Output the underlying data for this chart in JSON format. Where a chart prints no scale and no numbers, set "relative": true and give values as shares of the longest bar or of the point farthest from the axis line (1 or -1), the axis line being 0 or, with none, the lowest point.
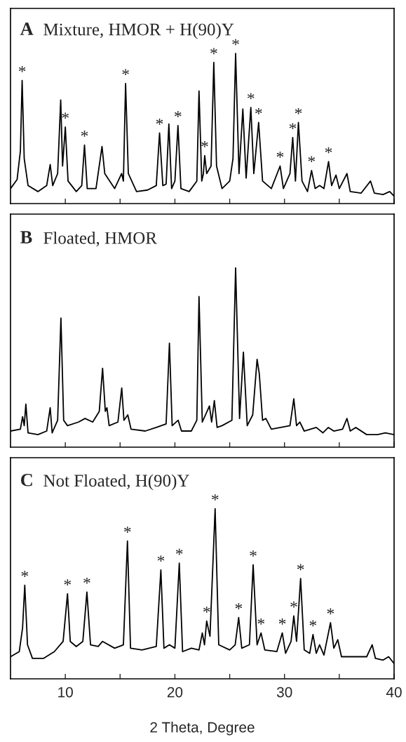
{
  "chart_data": [
    {
      "type": "line",
      "title": "A",
      "subtitle": "Mixture, HMOR + H(90)Y",
      "relative": true,
      "xlim": [
        5,
        40
      ],
      "xticks": [
        {
          "value": 10,
          "label": null
        },
        {
          "value": 15,
          "label": null
        },
        {
          "value": 20,
          "label": null
        },
        {
          "value": 25,
          "label": null
        },
        {
          "value": 30,
          "label": null
        },
        {
          "value": 35,
          "label": null
        },
        {
          "value": 40,
          "label": null
        }
      ],
      "tick_labels": false,
      "legend": false,
      "grid": false,
      "marker": "none",
      "line_style": "solid",
      "series": [
        {
          "color": "#000000",
          "x": [
            5.0,
            5.6,
            5.9,
            6.06,
            6.25,
            6.6,
            7.5,
            8.3,
            8.62,
            8.85,
            9.3,
            9.58,
            9.75,
            10.0,
            10.25,
            11.0,
            11.5,
            11.75,
            12.0,
            12.8,
            13.35,
            13.6,
            14.5,
            15.14,
            15.3,
            15.5,
            15.75,
            16.5,
            17.5,
            18.3,
            18.6,
            18.9,
            19.2,
            19.45,
            19.7,
            20.0,
            20.28,
            20.55,
            21.3,
            22.0,
            22.2,
            22.45,
            22.6,
            22.72,
            22.9,
            23.3,
            23.55,
            23.8,
            24.3,
            25.0,
            25.3,
            25.54,
            25.85,
            26.2,
            26.5,
            26.93,
            27.2,
            27.64,
            28.0,
            28.8,
            29.6,
            29.9,
            30.5,
            30.75,
            31.0,
            31.27,
            31.6,
            32.1,
            32.47,
            32.8,
            33.2,
            33.6,
            34.02,
            34.3,
            34.7,
            35.0,
            35.7,
            36.0,
            37.0,
            37.85,
            38.2,
            39.0,
            39.6,
            40.0
          ],
          "values": [
            0.1,
            0.16,
            0.35,
            0.82,
            0.3,
            0.12,
            0.08,
            0.12,
            0.26,
            0.12,
            0.2,
            0.69,
            0.25,
            0.51,
            0.15,
            0.08,
            0.12,
            0.39,
            0.1,
            0.1,
            0.38,
            0.2,
            0.1,
            0.2,
            0.15,
            0.8,
            0.2,
            0.08,
            0.09,
            0.12,
            0.47,
            0.12,
            0.13,
            0.53,
            0.1,
            0.15,
            0.52,
            0.1,
            0.08,
            0.15,
            0.75,
            0.15,
            0.2,
            0.32,
            0.2,
            0.25,
            0.94,
            0.25,
            0.1,
            0.15,
            0.3,
            1.0,
            0.2,
            0.63,
            0.17,
            0.64,
            0.2,
            0.54,
            0.15,
            0.1,
            0.25,
            0.1,
            0.2,
            0.44,
            0.15,
            0.54,
            0.15,
            0.08,
            0.22,
            0.1,
            0.12,
            0.1,
            0.28,
            0.12,
            0.19,
            0.1,
            0.2,
            0.08,
            0.07,
            0.15,
            0.07,
            0.06,
            0.08,
            0.05
          ]
        }
      ],
      "annotations": [
        {
          "text": "*",
          "x": 6.06,
          "y": 0.82
        },
        {
          "text": "*",
          "x": 10.0,
          "y": 0.51
        },
        {
          "text": "*",
          "x": 11.75,
          "y": 0.39
        },
        {
          "text": "*",
          "x": 15.5,
          "y": 0.8
        },
        {
          "text": "*",
          "x": 18.6,
          "y": 0.47
        },
        {
          "text": "*",
          "x": 20.28,
          "y": 0.52
        },
        {
          "text": "*",
          "x": 22.72,
          "y": 0.32
        },
        {
          "text": "*",
          "x": 23.55,
          "y": 0.94
        },
        {
          "text": "*",
          "x": 25.54,
          "y": 1.0
        },
        {
          "text": "*",
          "x": 26.93,
          "y": 0.64
        },
        {
          "text": "*",
          "x": 27.64,
          "y": 0.54
        },
        {
          "text": "*",
          "x": 29.6,
          "y": 0.25
        },
        {
          "text": "*",
          "x": 30.75,
          "y": 0.44
        },
        {
          "text": "*",
          "x": 31.27,
          "y": 0.54
        },
        {
          "text": "*",
          "x": 32.47,
          "y": 0.22
        },
        {
          "text": "*",
          "x": 34.02,
          "y": 0.28
        }
      ]
    },
    {
      "type": "line",
      "title": "B",
      "subtitle": "Floated, HMOR",
      "relative": true,
      "xlim": [
        5,
        40
      ],
      "xticks": [
        {
          "value": 10,
          "label": null
        },
        {
          "value": 15,
          "label": null
        },
        {
          "value": 20,
          "label": null
        },
        {
          "value": 25,
          "label": null
        },
        {
          "value": 30,
          "label": null
        },
        {
          "value": 35,
          "label": null
        },
        {
          "value": 40,
          "label": null
        }
      ],
      "tick_labels": false,
      "legend": false,
      "grid": false,
      "marker": "none",
      "line_style": "solid",
      "series": [
        {
          "color": "#000000",
          "x": [
            5.0,
            5.9,
            6.1,
            6.25,
            6.4,
            6.6,
            7.5,
            8.3,
            8.62,
            8.8,
            9.3,
            9.6,
            9.85,
            10.2,
            11.2,
            11.8,
            12.5,
            13.1,
            13.4,
            13.65,
            13.8,
            14.0,
            14.8,
            15.15,
            15.35,
            15.7,
            16.0,
            17.3,
            18.3,
            19.2,
            19.5,
            19.75,
            20.3,
            20.6,
            21.5,
            22.0,
            22.2,
            22.5,
            23.15,
            23.35,
            23.6,
            23.85,
            24.3,
            25.2,
            25.54,
            25.9,
            26.25,
            26.6,
            27.1,
            27.5,
            27.7,
            28.0,
            28.3,
            28.8,
            30.5,
            30.85,
            31.1,
            31.4,
            31.8,
            32.9,
            33.5,
            34.0,
            34.5,
            35.3,
            35.7,
            36.0,
            36.5,
            37.5,
            38.5,
            39.2,
            40.0
          ],
          "values": [
            0.09,
            0.1,
            0.17,
            0.12,
            0.24,
            0.08,
            0.07,
            0.09,
            0.22,
            0.08,
            0.15,
            0.72,
            0.15,
            0.12,
            0.14,
            0.16,
            0.14,
            0.2,
            0.44,
            0.2,
            0.22,
            0.12,
            0.14,
            0.33,
            0.15,
            0.18,
            0.1,
            0.09,
            0.11,
            0.13,
            0.58,
            0.12,
            0.15,
            0.09,
            0.09,
            0.15,
            0.84,
            0.14,
            0.23,
            0.14,
            0.26,
            0.11,
            0.12,
            0.15,
            1.0,
            0.16,
            0.53,
            0.12,
            0.18,
            0.49,
            0.41,
            0.15,
            0.16,
            0.1,
            0.12,
            0.27,
            0.12,
            0.14,
            0.09,
            0.11,
            0.08,
            0.11,
            0.09,
            0.1,
            0.16,
            0.09,
            0.11,
            0.07,
            0.07,
            0.08,
            0.07
          ]
        }
      ]
    },
    {
      "type": "line",
      "title": "C",
      "subtitle": "Not Floated, H(90)Y",
      "relative": true,
      "xlim": [
        5,
        40
      ],
      "xlabel": "2 Theta, Degree",
      "xticks": [
        10,
        {
          "value": 15,
          "label": null
        },
        20,
        {
          "value": 25,
          "label": null
        },
        30,
        {
          "value": 35,
          "label": null
        },
        40
      ],
      "tick_labels": "x",
      "legend": false,
      "grid": false,
      "marker": "none",
      "line_style": "solid",
      "series": [
        {
          "color": "#000000",
          "x": [
            5.0,
            5.8,
            6.1,
            6.3,
            6.55,
            7.0,
            8.0,
            9.0,
            9.8,
            10.2,
            10.45,
            11.0,
            11.6,
            11.97,
            12.3,
            13.0,
            13.4,
            14.5,
            15.3,
            15.67,
            15.95,
            17.0,
            18.3,
            18.72,
            19.0,
            19.5,
            20.0,
            20.4,
            20.7,
            21.5,
            22.2,
            22.5,
            22.7,
            22.9,
            23.2,
            23.67,
            24.0,
            25.0,
            25.5,
            25.82,
            26.1,
            26.8,
            27.14,
            27.5,
            27.86,
            28.2,
            29.3,
            29.8,
            30.1,
            30.6,
            30.85,
            31.1,
            31.47,
            31.8,
            32.3,
            32.6,
            32.9,
            33.2,
            33.6,
            34.2,
            34.5,
            34.86,
            35.2,
            37.5,
            38.0,
            38.3,
            39.0,
            39.5,
            40.0
          ],
          "values": [
            0.13,
            0.16,
            0.3,
            0.55,
            0.2,
            0.12,
            0.12,
            0.16,
            0.22,
            0.5,
            0.22,
            0.19,
            0.22,
            0.51,
            0.2,
            0.19,
            0.22,
            0.18,
            0.2,
            0.81,
            0.18,
            0.17,
            0.19,
            0.64,
            0.18,
            0.2,
            0.18,
            0.68,
            0.16,
            0.18,
            0.17,
            0.27,
            0.2,
            0.34,
            0.25,
            1.0,
            0.2,
            0.17,
            0.2,
            0.36,
            0.18,
            0.2,
            0.67,
            0.2,
            0.27,
            0.17,
            0.16,
            0.27,
            0.15,
            0.22,
            0.37,
            0.22,
            0.59,
            0.17,
            0.15,
            0.26,
            0.15,
            0.2,
            0.14,
            0.33,
            0.18,
            0.23,
            0.13,
            0.13,
            0.2,
            0.12,
            0.11,
            0.13,
            0.09
          ]
        }
      ],
      "annotations": [
        {
          "text": "*",
          "x": 6.3,
          "y": 0.55
        },
        {
          "text": "*",
          "x": 10.2,
          "y": 0.5
        },
        {
          "text": "*",
          "x": 11.97,
          "y": 0.51
        },
        {
          "text": "*",
          "x": 15.67,
          "y": 0.81
        },
        {
          "text": "*",
          "x": 18.72,
          "y": 0.64
        },
        {
          "text": "*",
          "x": 20.4,
          "y": 0.68
        },
        {
          "text": "*",
          "x": 22.9,
          "y": 0.34
        },
        {
          "text": "*",
          "x": 23.67,
          "y": 1.0
        },
        {
          "text": "*",
          "x": 25.82,
          "y": 0.36
        },
        {
          "text": "*",
          "x": 27.14,
          "y": 0.67
        },
        {
          "text": "*",
          "x": 27.86,
          "y": 0.27
        },
        {
          "text": "*",
          "x": 29.8,
          "y": 0.27
        },
        {
          "text": "*",
          "x": 30.85,
          "y": 0.37
        },
        {
          "text": "*",
          "x": 31.47,
          "y": 0.59
        },
        {
          "text": "*",
          "x": 32.6,
          "y": 0.26
        },
        {
          "text": "*",
          "x": 34.2,
          "y": 0.33
        }
      ]
    }
  ]
}
